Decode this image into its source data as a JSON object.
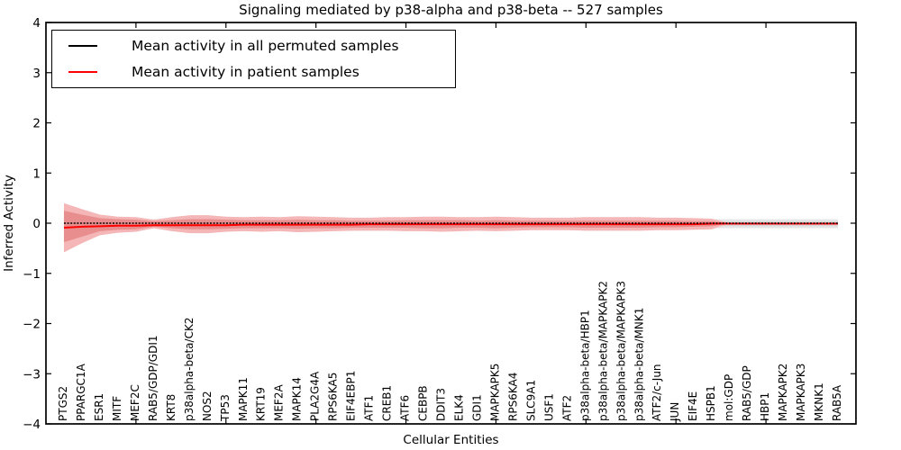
{
  "chart_data": {
    "type": "line",
    "title": "Signaling mediated by p38-alpha and p38-beta -- 527 samples",
    "xlabel": "Cellular Entities",
    "ylabel": "Inferred Activity",
    "ylim": [
      -4,
      4
    ],
    "yticks": [
      4,
      3,
      2,
      1,
      0,
      -1,
      -2,
      -3,
      -4
    ],
    "xticks_minor_positions": [
      5,
      10,
      15,
      20,
      25,
      30,
      35,
      40
    ],
    "legend_position": "upper-left",
    "grid": false,
    "categories": [
      "PTGS2",
      "PPARGC1A",
      "ESR1",
      "MITF",
      "MEF2C",
      "RAB5/GDP/GDI1",
      "KRT8",
      "p38alpha-beta/CK2",
      "NOS2",
      "TP53",
      "MAPK11",
      "KRT19",
      "MEF2A",
      "MAPK14",
      "PLA2G4A",
      "RPS6KA5",
      "EIF4EBP1",
      "ATF1",
      "CREB1",
      "ATF6",
      "CEBPB",
      "DDIT3",
      "ELK4",
      "GDI1",
      "MAPKAPK5",
      "RPS6KA4",
      "SLC9A1",
      "USF1",
      "ATF2",
      "p38alpha-beta/HBP1",
      "p38alpha-beta/MAPKAPK2",
      "p38alpha-beta/MAPKAPK3",
      "p38alpha-beta/MNK1",
      "ATF2/c-Jun",
      "JUN",
      "EIF4E",
      "HSPB1",
      "mol:GDP",
      "RAB5/GDP",
      "HBP1",
      "MAPKAPK2",
      "MAPKAPK3",
      "MKNK1",
      "RAB5A"
    ],
    "series": [
      {
        "name": "Mean activity in all permuted samples",
        "color": "#000000",
        "style": "dashed",
        "values": [
          0,
          0,
          0,
          0,
          0,
          0,
          0,
          0,
          0,
          0,
          0,
          0,
          0,
          0,
          0,
          0,
          0,
          0,
          0,
          0,
          0,
          0,
          0,
          0,
          0,
          0,
          0,
          0,
          0,
          0,
          0,
          0,
          0,
          0,
          0,
          0,
          0,
          0,
          0,
          0,
          0,
          0,
          0,
          0
        ]
      },
      {
        "name": "Mean activity in patient samples",
        "color": "#ff0000",
        "style": "solid",
        "values": [
          -0.09,
          -0.07,
          -0.06,
          -0.05,
          -0.05,
          -0.04,
          -0.04,
          -0.04,
          -0.04,
          -0.04,
          -0.03,
          -0.03,
          -0.03,
          -0.03,
          -0.03,
          -0.03,
          -0.03,
          -0.02,
          -0.02,
          -0.02,
          -0.02,
          -0.02,
          -0.02,
          -0.02,
          -0.02,
          -0.02,
          -0.02,
          -0.02,
          -0.02,
          -0.02,
          -0.02,
          -0.02,
          -0.02,
          -0.02,
          -0.02,
          -0.02,
          -0.01,
          -0.01,
          -0.01,
          -0.01,
          -0.01,
          -0.01,
          -0.01,
          -0.01
        ]
      }
    ],
    "bands": {
      "patient_outer": {
        "color": "#f4b6b6",
        "top": [
          0.4,
          0.28,
          0.17,
          0.13,
          0.12,
          0.07,
          0.12,
          0.16,
          0.16,
          0.13,
          0.12,
          0.13,
          0.12,
          0.14,
          0.13,
          0.12,
          0.11,
          0.11,
          0.12,
          0.12,
          0.13,
          0.13,
          0.12,
          0.12,
          0.13,
          0.12,
          0.11,
          0.11,
          0.11,
          0.12,
          0.12,
          0.12,
          0.12,
          0.11,
          0.11,
          0.1,
          0.09,
          0,
          0,
          0,
          0,
          0,
          0,
          0
        ],
        "bottom": [
          -0.58,
          -0.4,
          -0.24,
          -0.19,
          -0.17,
          -0.1,
          -0.16,
          -0.2,
          -0.2,
          -0.17,
          -0.16,
          -0.17,
          -0.16,
          -0.18,
          -0.17,
          -0.16,
          -0.15,
          -0.15,
          -0.15,
          -0.16,
          -0.16,
          -0.17,
          -0.16,
          -0.15,
          -0.16,
          -0.15,
          -0.14,
          -0.14,
          -0.14,
          -0.15,
          -0.15,
          -0.15,
          -0.15,
          -0.14,
          -0.14,
          -0.13,
          -0.12,
          0,
          0,
          0,
          0,
          0,
          0,
          0
        ]
      },
      "patient_inner": {
        "color": "#e98e8e",
        "top": [
          0.25,
          0.17,
          0.1,
          0.08,
          0.07,
          0.04,
          0.06,
          0.08,
          0.08,
          0.07,
          0.06,
          0.06,
          0.06,
          0.07,
          0.06,
          0.06,
          0.05,
          0.05,
          0.05,
          0.06,
          0.06,
          0.06,
          0.06,
          0.05,
          0.06,
          0.05,
          0.05,
          0.05,
          0.05,
          0.05,
          0.05,
          0.05,
          0.05,
          0.05,
          0.05,
          0.04,
          0.04,
          0,
          0,
          0,
          0,
          0,
          0,
          0
        ],
        "bottom": [
          -0.38,
          -0.27,
          -0.16,
          -0.13,
          -0.12,
          -0.07,
          -0.1,
          -0.12,
          -0.12,
          -0.11,
          -0.1,
          -0.1,
          -0.1,
          -0.11,
          -0.1,
          -0.1,
          -0.09,
          -0.09,
          -0.09,
          -0.09,
          -0.1,
          -0.1,
          -0.09,
          -0.09,
          -0.1,
          -0.09,
          -0.08,
          -0.08,
          -0.08,
          -0.09,
          -0.09,
          -0.09,
          -0.09,
          -0.08,
          -0.08,
          -0.07,
          -0.06,
          0,
          0,
          0,
          0,
          0,
          0,
          0
        ]
      },
      "permuted_outer": {
        "color": "#e6e6e6",
        "top": 0.08,
        "bottom": -0.1
      },
      "permuted_inner": {
        "color": "#d9d9d9",
        "top": 0.04,
        "bottom": -0.06
      }
    }
  }
}
